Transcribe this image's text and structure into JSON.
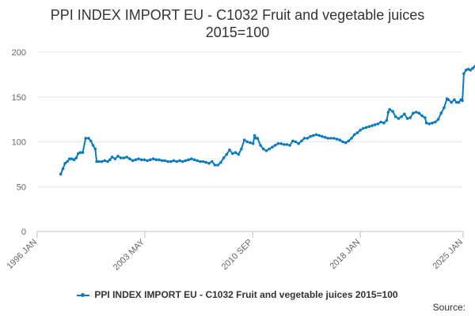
{
  "chart_data": {
    "type": "line",
    "title_line1": "PPI INDEX IMPORT EU - C1032 Fruit and vegetable juices",
    "title_line2": "2015=100",
    "xlabel": "",
    "ylabel": "",
    "ylim": [
      0,
      200
    ],
    "yticks": [
      "0",
      "50",
      "100",
      "150",
      "200"
    ],
    "xticks": [
      {
        "label": "1996 JAN",
        "t": 1996.0
      },
      {
        "label": "2003 MAY",
        "t": 2003.333
      },
      {
        "label": "2010 SEP",
        "t": 2010.667
      },
      {
        "label": "2018 JAN",
        "t": 2018.0
      },
      {
        "label": "2025 JAN",
        "t": 2025.0
      }
    ],
    "xlim": [
      1996.0,
      2025.0
    ],
    "grid": "horizontal",
    "legend_position": "bottom",
    "color": "#0b7bbf",
    "series": [
      {
        "name": "PPI INDEX IMPORT EU - C1032 Fruit and vegetable juices 2015=100",
        "points": [
          [
            1997.6,
            64
          ],
          [
            1997.75,
            70
          ],
          [
            1997.9,
            76
          ],
          [
            1998.05,
            78
          ],
          [
            1998.2,
            81
          ],
          [
            1998.35,
            81
          ],
          [
            1998.5,
            80
          ],
          [
            1998.65,
            82
          ],
          [
            1998.8,
            87
          ],
          [
            1998.95,
            88
          ],
          [
            1999.1,
            88
          ],
          [
            1999.3,
            104
          ],
          [
            1999.5,
            104
          ],
          [
            1999.65,
            101
          ],
          [
            1999.8,
            96
          ],
          [
            1999.95,
            92
          ],
          [
            2000.05,
            78
          ],
          [
            2000.2,
            78
          ],
          [
            2000.4,
            78
          ],
          [
            2000.6,
            79
          ],
          [
            2000.8,
            78
          ],
          [
            2000.95,
            80
          ],
          [
            2001.1,
            83
          ],
          [
            2001.3,
            81
          ],
          [
            2001.5,
            84
          ],
          [
            2001.7,
            82
          ],
          [
            2001.9,
            82
          ],
          [
            2002.1,
            83
          ],
          [
            2002.3,
            81
          ],
          [
            2002.5,
            79
          ],
          [
            2002.7,
            80
          ],
          [
            2002.9,
            81
          ],
          [
            2003.1,
            80
          ],
          [
            2003.3,
            80
          ],
          [
            2003.5,
            79
          ],
          [
            2003.7,
            80
          ],
          [
            2003.9,
            81
          ],
          [
            2004.1,
            80
          ],
          [
            2004.3,
            80
          ],
          [
            2004.5,
            79
          ],
          [
            2004.7,
            79
          ],
          [
            2004.9,
            78
          ],
          [
            2005.1,
            78
          ],
          [
            2005.3,
            79
          ],
          [
            2005.5,
            78
          ],
          [
            2005.7,
            79
          ],
          [
            2005.9,
            78
          ],
          [
            2006.1,
            79
          ],
          [
            2006.3,
            80
          ],
          [
            2006.5,
            81
          ],
          [
            2006.7,
            80
          ],
          [
            2006.9,
            79
          ],
          [
            2007.1,
            78
          ],
          [
            2007.3,
            78
          ],
          [
            2007.5,
            77
          ],
          [
            2007.7,
            76
          ],
          [
            2007.9,
            78
          ],
          [
            2008.1,
            74
          ],
          [
            2008.3,
            74
          ],
          [
            2008.5,
            77
          ],
          [
            2008.7,
            82
          ],
          [
            2008.9,
            86
          ],
          [
            2009.1,
            91
          ],
          [
            2009.3,
            87
          ],
          [
            2009.5,
            88
          ],
          [
            2009.7,
            86
          ],
          [
            2009.9,
            92
          ],
          [
            2010.1,
            102
          ],
          [
            2010.3,
            100
          ],
          [
            2010.5,
            99
          ],
          [
            2010.7,
            98
          ],
          [
            2010.8,
            107
          ],
          [
            2010.9,
            104
          ],
          [
            2011.0,
            104
          ],
          [
            2011.2,
            96
          ],
          [
            2011.4,
            92
          ],
          [
            2011.6,
            90
          ],
          [
            2011.8,
            92
          ],
          [
            2012.0,
            94
          ],
          [
            2012.2,
            96
          ],
          [
            2012.4,
            98
          ],
          [
            2012.6,
            98
          ],
          [
            2012.8,
            97
          ],
          [
            2013.0,
            97
          ],
          [
            2013.2,
            96
          ],
          [
            2013.4,
            101
          ],
          [
            2013.6,
            100
          ],
          [
            2013.8,
            98
          ],
          [
            2014.0,
            101
          ],
          [
            2014.2,
            104
          ],
          [
            2014.4,
            104
          ],
          [
            2014.6,
            106
          ],
          [
            2014.8,
            107
          ],
          [
            2015.0,
            108
          ],
          [
            2015.2,
            107
          ],
          [
            2015.4,
            106
          ],
          [
            2015.6,
            105
          ],
          [
            2015.8,
            104
          ],
          [
            2016.0,
            104
          ],
          [
            2016.2,
            104
          ],
          [
            2016.4,
            103
          ],
          [
            2016.6,
            102
          ],
          [
            2016.8,
            100
          ],
          [
            2017.0,
            99
          ],
          [
            2017.2,
            101
          ],
          [
            2017.4,
            104
          ],
          [
            2017.6,
            108
          ],
          [
            2017.8,
            110
          ],
          [
            2018.0,
            113
          ],
          [
            2018.2,
            115
          ],
          [
            2018.4,
            116
          ],
          [
            2018.6,
            117
          ],
          [
            2018.8,
            118
          ],
          [
            2019.0,
            119
          ],
          [
            2019.2,
            120
          ],
          [
            2019.4,
            122
          ],
          [
            2019.6,
            121
          ],
          [
            2019.8,
            124
          ],
          [
            2019.9,
            133
          ],
          [
            2020.0,
            136
          ],
          [
            2020.2,
            134
          ],
          [
            2020.4,
            128
          ],
          [
            2020.6,
            126
          ],
          [
            2020.8,
            128
          ],
          [
            2021.0,
            131
          ],
          [
            2021.2,
            126
          ],
          [
            2021.4,
            127
          ],
          [
            2021.6,
            132
          ],
          [
            2021.8,
            133
          ],
          [
            2022.0,
            132
          ],
          [
            2022.2,
            129
          ],
          [
            2022.4,
            127
          ],
          [
            2022.5,
            121
          ],
          [
            2022.7,
            120
          ],
          [
            2022.9,
            121
          ],
          [
            2023.1,
            122
          ],
          [
            2023.3,
            125
          ],
          [
            2023.5,
            132
          ],
          [
            2023.7,
            138
          ],
          [
            2023.9,
            148
          ],
          [
            2024.0,
            147
          ],
          [
            2024.2,
            144
          ],
          [
            2024.4,
            147
          ],
          [
            2024.55,
            144
          ],
          [
            2024.7,
            144
          ],
          [
            2024.85,
            147
          ],
          [
            2024.95,
            146
          ],
          [
            2025.05,
            176
          ],
          [
            2025.2,
            180
          ],
          [
            2025.35,
            181
          ],
          [
            2025.5,
            180
          ],
          [
            2025.65,
            182
          ],
          [
            2025.8,
            184
          ],
          [
            2025.95,
            186
          ],
          [
            2026.05,
            189
          ]
        ]
      }
    ]
  },
  "source_label": "Source:"
}
